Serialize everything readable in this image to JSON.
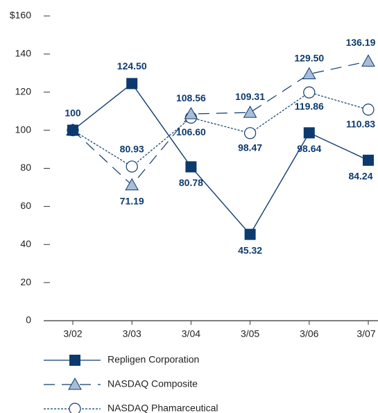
{
  "chart_data": {
    "type": "line",
    "categories": [
      "3/02",
      "3/03",
      "3/04",
      "3/05",
      "3/06",
      "3/07"
    ],
    "series": [
      {
        "name": "Repligen Corporation",
        "color": "#0d3a6e",
        "values": [
          100,
          124.5,
          80.78,
          45.32,
          98.64,
          84.24
        ],
        "value_labels": [
          "100",
          "124.50",
          "80.78",
          "45.32",
          "98.64",
          "84.24"
        ]
      },
      {
        "name": "NASDAQ Composite",
        "color": "#0d3a6e",
        "values": [
          100,
          71.19,
          108.56,
          109.31,
          129.5,
          136.19
        ],
        "value_labels": [
          null,
          "71.19",
          "108.56",
          "109.31",
          "129.50",
          "136.19"
        ]
      },
      {
        "name": "NASDAQ Phamarceutical",
        "color": "#0d3a6e",
        "values": [
          100,
          80.93,
          106.6,
          98.47,
          119.86,
          110.83
        ],
        "value_labels": [
          null,
          "80.93",
          "106.60",
          "98.47",
          "119.86",
          "110.83"
        ]
      }
    ],
    "ylim": [
      0,
      160
    ],
    "yticks": [
      0,
      20,
      40,
      60,
      80,
      100,
      120,
      140,
      {
        "value": 160,
        "label": "$160"
      }
    ]
  }
}
